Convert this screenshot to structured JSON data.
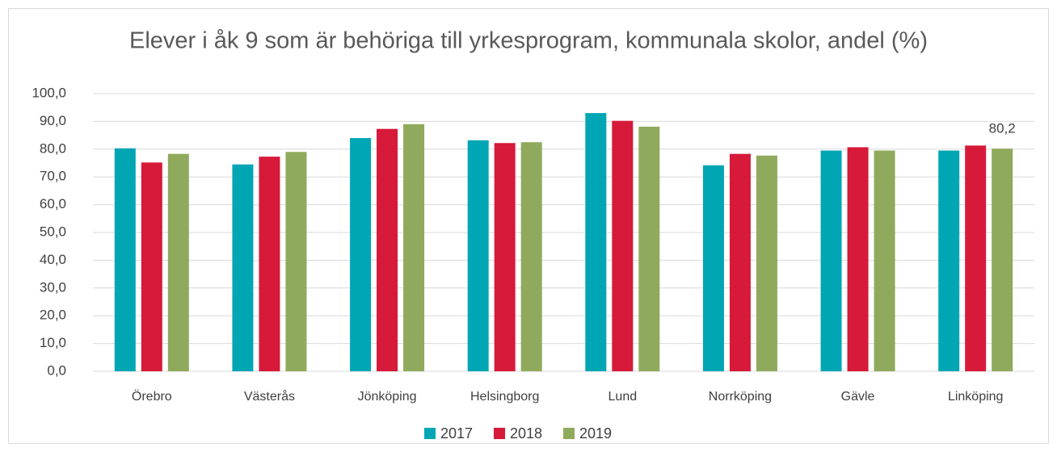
{
  "chart_data": {
    "type": "bar",
    "title": "Elever i åk 9 som är behöriga till yrkesprogram, kommunala skolor, andel (%)",
    "categories": [
      "Örebro",
      "Västerås",
      "Jönköping",
      "Helsingborg",
      "Lund",
      "Norrköping",
      "Gävle",
      "Linköping"
    ],
    "series": [
      {
        "name": "2017",
        "color": "#00a6b4",
        "values": [
          80.3,
          74.5,
          84.0,
          83.2,
          93.0,
          74.2,
          79.5,
          79.5
        ]
      },
      {
        "name": "2018",
        "color": "#d7193a",
        "values": [
          75.2,
          77.3,
          87.3,
          82.2,
          90.2,
          78.3,
          80.7,
          81.3
        ]
      },
      {
        "name": "2019",
        "color": "#8faa5c",
        "values": [
          78.3,
          79.0,
          89.0,
          82.5,
          88.1,
          77.7,
          79.5,
          80.2
        ],
        "value_labels": [
          null,
          null,
          null,
          null,
          null,
          null,
          null,
          "80,2"
        ]
      }
    ],
    "ylim": [
      0,
      100
    ],
    "yticks": [
      {
        "value": 0,
        "label": "0,0"
      },
      {
        "value": 10,
        "label": "10,0"
      },
      {
        "value": 20,
        "label": "20,0"
      },
      {
        "value": 30,
        "label": "30,0"
      },
      {
        "value": 40,
        "label": "40,0"
      },
      {
        "value": 50,
        "label": "50,0"
      },
      {
        "value": 60,
        "label": "60,0"
      },
      {
        "value": 70,
        "label": "70,0"
      },
      {
        "value": 80,
        "label": "80,0"
      },
      {
        "value": 90,
        "label": "90,0"
      },
      {
        "value": 100,
        "label": "100,0"
      }
    ],
    "grid": true,
    "legend": "bottom"
  }
}
